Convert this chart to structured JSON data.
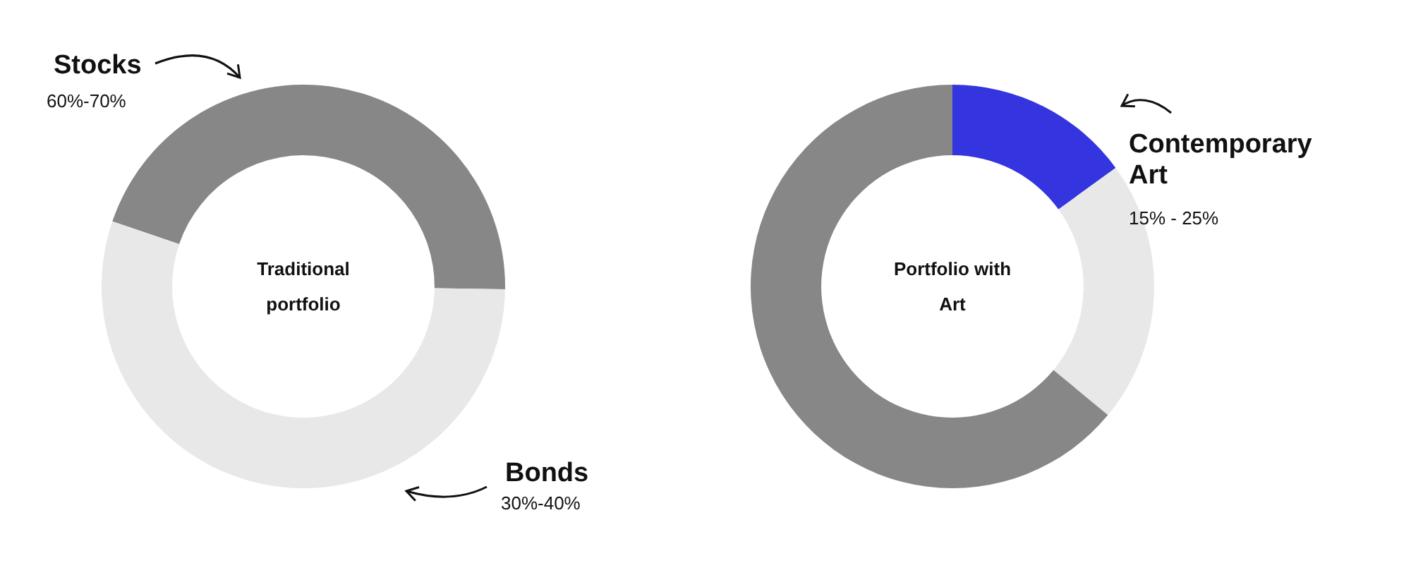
{
  "chart_data": [
    {
      "type": "donut",
      "title": "Traditional portfolio",
      "categories": [
        "Stocks",
        "Bonds"
      ],
      "values": [
        45,
        55
      ],
      "colors": [
        "#878787",
        "#e8e8e8"
      ],
      "annotations": [
        "60%-70%",
        "30%-40%"
      ]
    },
    {
      "type": "donut",
      "title": "Portfolio with Art",
      "categories": [
        "Contemporary Art",
        null,
        null
      ],
      "values": [
        15,
        21,
        64
      ],
      "colors": [
        "#3535e0",
        "#e8e8e8",
        "#878787"
      ],
      "annotations": [
        "15% - 25%"
      ]
    }
  ]
}
